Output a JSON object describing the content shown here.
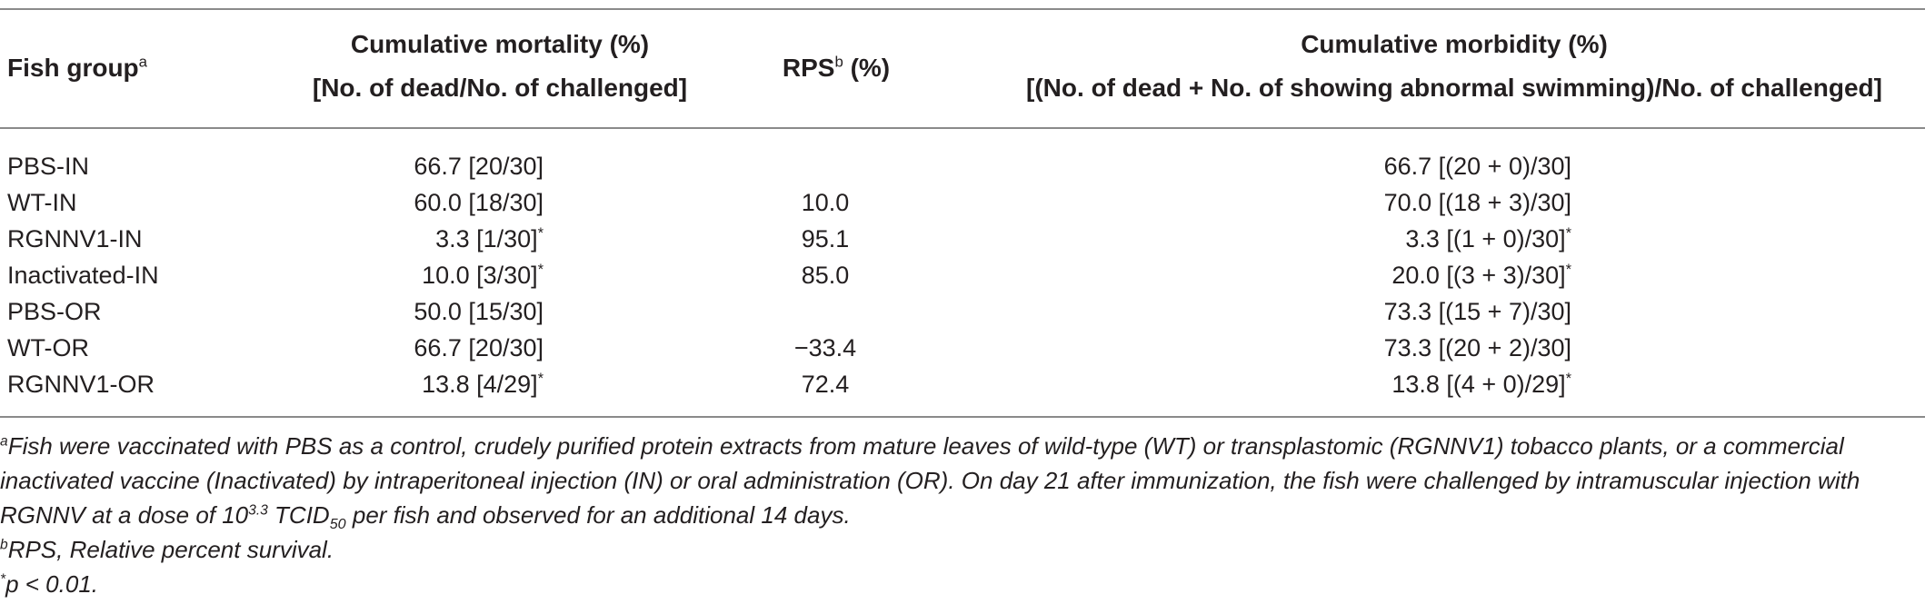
{
  "header": {
    "group": "Fish group",
    "group_sup": "a",
    "mortality_line1": "Cumulative mortality (%)",
    "mortality_line2": "[No. of dead/No. of challenged]",
    "rps": "RPS",
    "rps_sup": "b",
    "rps_unit": " (%)",
    "morbidity_line1": "Cumulative morbidity (%)",
    "morbidity_line2": "[(No. of dead + No. of showing abnormal swimming)/No. of challenged]"
  },
  "rows": [
    {
      "group": "PBS-IN",
      "mortality": "66.7 [20/30]",
      "mortality_sig": "",
      "rps": "",
      "morbidity": "66.7 [(20 + 0)/30]",
      "morbidity_sig": ""
    },
    {
      "group": "WT-IN",
      "mortality": "60.0 [18/30]",
      "mortality_sig": "",
      "rps": "10.0",
      "morbidity": "70.0 [(18 + 3)/30]",
      "morbidity_sig": ""
    },
    {
      "group": "RGNNV1-IN",
      "mortality": "3.3 [1/30]",
      "mortality_sig": "*",
      "rps": "95.1",
      "morbidity": "3.3 [(1 + 0)/30]",
      "morbidity_sig": "*"
    },
    {
      "group": "Inactivated-IN",
      "mortality": "10.0 [3/30]",
      "mortality_sig": "*",
      "rps": "85.0",
      "morbidity": "20.0 [(3 + 3)/30]",
      "morbidity_sig": "*"
    },
    {
      "group": "PBS-OR",
      "mortality": "50.0 [15/30]",
      "mortality_sig": "",
      "rps": "",
      "morbidity": "73.3 [(15 + 7)/30]",
      "morbidity_sig": ""
    },
    {
      "group": "WT-OR",
      "mortality": "66.7 [20/30]",
      "mortality_sig": "",
      "rps": "−33.4",
      "morbidity": "73.3 [(20 + 2)/30]",
      "morbidity_sig": ""
    },
    {
      "group": "RGNNV1-OR",
      "mortality": "13.8 [4/29]",
      "mortality_sig": "*",
      "rps": "72.4",
      "morbidity": "13.8 [(4 + 0)/29]",
      "morbidity_sig": "*"
    }
  ],
  "footnotes": {
    "a_mark": "a",
    "a_line1": "Fish were vaccinated with PBS as a control, crudely purified protein extracts from mature leaves of wild-type (WT) or transplastomic (RGNNV1) tobacco plants, or a commercial",
    "a_line2": "inactivated vaccine (Inactivated) by intraperitoneal injection (IN) or oral administration (OR). On day 21 after immunization, the fish were challenged by intramuscular injection with",
    "a_line3_pre": "RGNNV at a dose of 10",
    "a_line3_exp": "3.3",
    "a_line3_mid": " TCID",
    "a_line3_sub": "50",
    "a_line3_post": " per fish and observed for an additional 14 days.",
    "b_mark": "b",
    "b_text": "RPS, Relative percent survival.",
    "star_mark": "*",
    "star_text": "p < 0.01."
  }
}
